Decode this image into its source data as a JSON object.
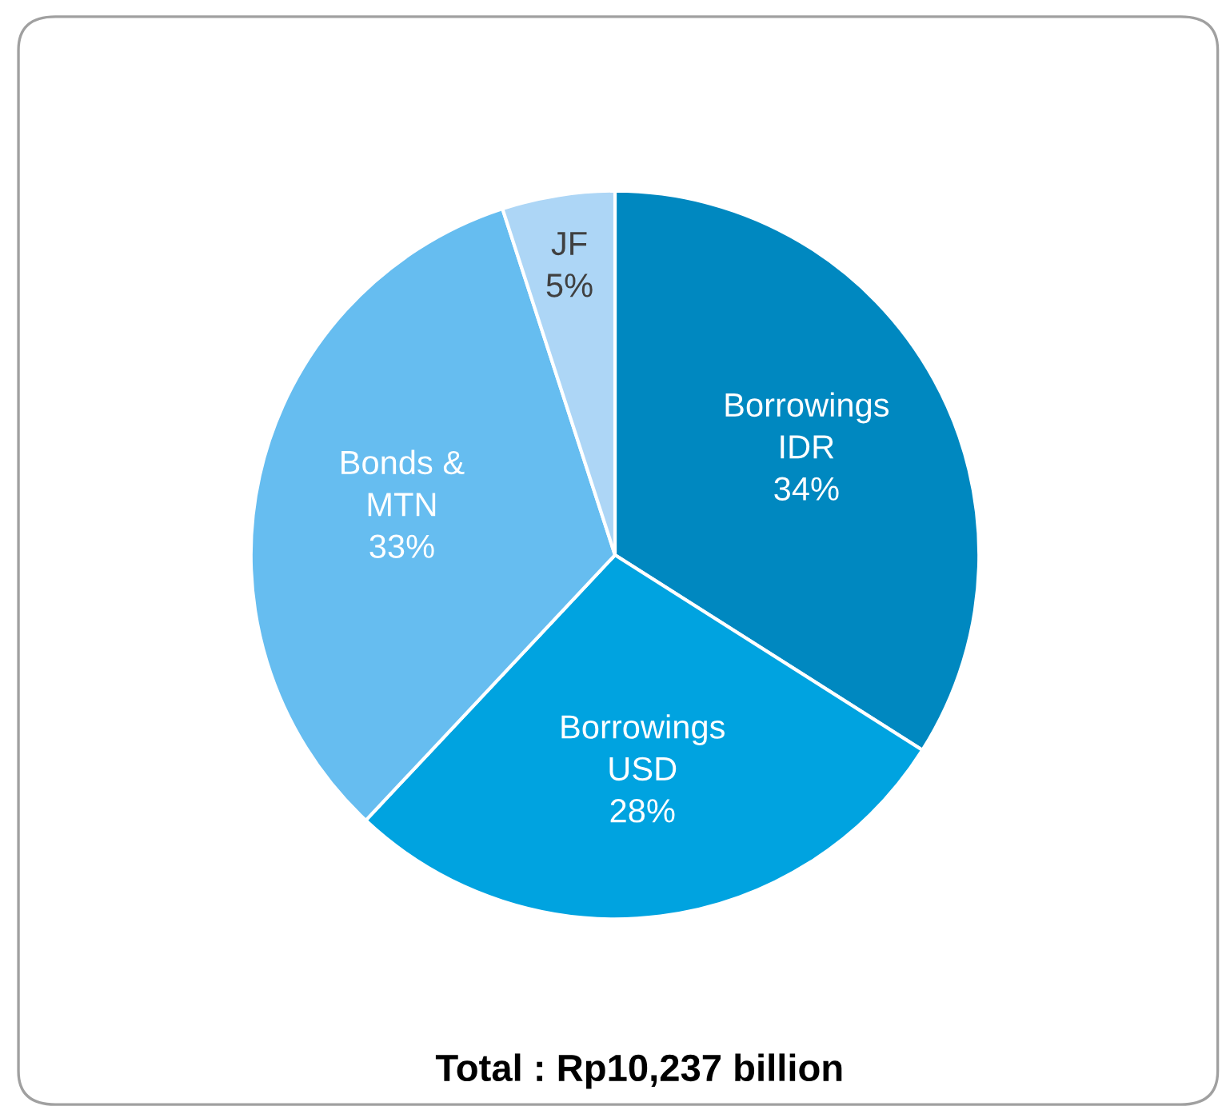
{
  "chart_data": {
    "type": "pie",
    "categories": [
      "Borrowings\nIDR",
      "Borrowings\nUSD",
      "Bonds &\nMTN",
      "JF"
    ],
    "values": [
      34,
      28,
      33,
      5
    ],
    "colors": [
      "#0088c0",
      "#00a3e0",
      "#66bdf0",
      "#add6f6"
    ],
    "value_labels": [
      "34%",
      "28%",
      "33%",
      "5%"
    ],
    "annotations": [
      "Total : Rp10,237 billion"
    ],
    "legend": false
  }
}
